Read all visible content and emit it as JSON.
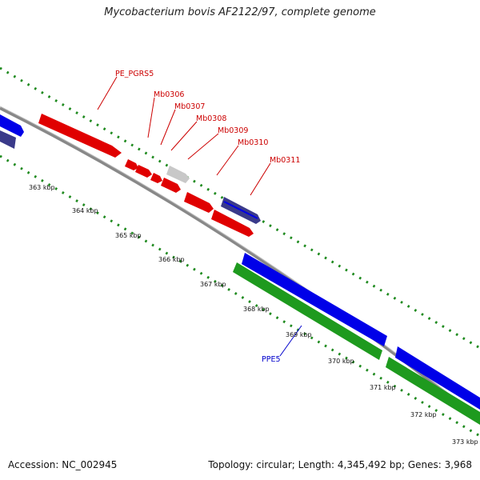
{
  "title": "Mycobacterium bovis AF2122/97, complete genome",
  "footer": {
    "accession": "Accession: NC_002945",
    "summary": "Topology: circular; Length: 4,345,492 bp; Genes: 3,968"
  },
  "colors": {
    "forward_feature": "#e00000",
    "gray_feature": "#c8c8c8",
    "reverse_feature": "#0000e8",
    "dark_feature": "#3a3a8a",
    "rna_feature": "#1e9a1e",
    "backbone": "#8a8a8a",
    "tick": "#1e8a1e",
    "label_red": "#cc0000",
    "label_blue": "#0000cc"
  },
  "axis_labels": [
    "363 kbp",
    "364 kbp",
    "365 kbp",
    "366 kbp",
    "367 kbp",
    "368 kbp",
    "369 kbp",
    "370 kbp",
    "371 kbp",
    "372 kbp",
    "373 kbp"
  ],
  "gene_labels": [
    {
      "text": "PE_PGRS5",
      "color": "red"
    },
    {
      "text": "Mb0306",
      "color": "red"
    },
    {
      "text": "Mb0307",
      "color": "red"
    },
    {
      "text": "Mb0308",
      "color": "red"
    },
    {
      "text": "Mb0309",
      "color": "red"
    },
    {
      "text": "Mb0310",
      "color": "red"
    },
    {
      "text": "Mb0311",
      "color": "red"
    },
    {
      "text": "PPE5",
      "color": "blue"
    }
  ]
}
